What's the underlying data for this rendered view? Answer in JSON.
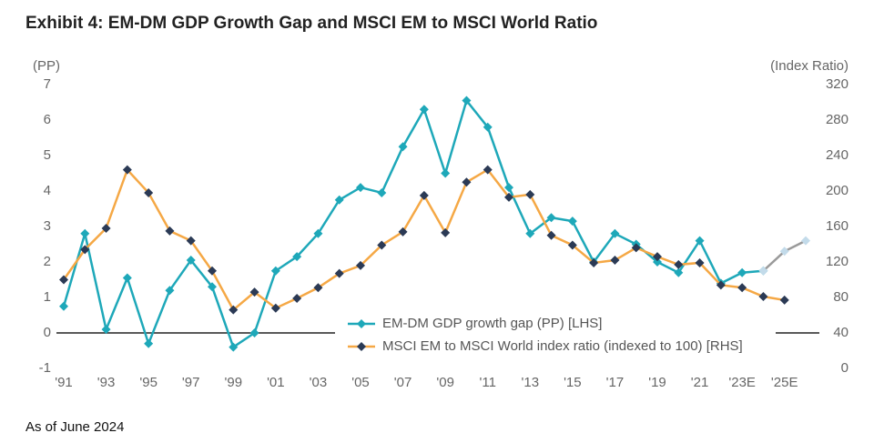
{
  "chart_data": {
    "type": "line",
    "title": "Exhibit 4: EM-DM GDP Growth Gap and MSCI EM to MSCI World Ratio",
    "y_label": "(PP)",
    "y2_label": "(Index Ratio)",
    "footnote": "As of June 2024",
    "categories": [
      "'91",
      null,
      "'93",
      null,
      "'95",
      null,
      "'97",
      null,
      "'99",
      null,
      "'01",
      null,
      "'03",
      null,
      "'05",
      null,
      "'07",
      null,
      "'09",
      null,
      "'11",
      null,
      "'13",
      null,
      "'15",
      null,
      "'17",
      null,
      "'19",
      null,
      "'21",
      null,
      "'23E",
      null,
      "'25E",
      null
    ],
    "ylim": [
      -1,
      7
    ],
    "yticks": [
      -1,
      0,
      1,
      2,
      3,
      4,
      5,
      6,
      7
    ],
    "y2lim": [
      0,
      320
    ],
    "y2ticks": [
      0,
      40,
      80,
      120,
      160,
      200,
      240,
      280,
      320
    ],
    "zero_line": true,
    "series": [
      {
        "name": "EM-DM GDP growth gap (PP) [LHS]",
        "color": "#1ea8b9",
        "marker_color": "#1ea8b9",
        "values": [
          0.75,
          2.8,
          0.1,
          1.55,
          -0.3,
          1.2,
          2.05,
          1.3,
          -0.4,
          0,
          1.75,
          2.15,
          2.8,
          3.75,
          4.1,
          3.95,
          5.25,
          6.3,
          4.5,
          6.55,
          5.8,
          4.1,
          2.8,
          3.25,
          3.15,
          2.0,
          2.8,
          2.5,
          2.0,
          1.7,
          2.6,
          1.4,
          1.7,
          1.75,
          null,
          null
        ]
      },
      {
        "name": "MSCI EM to MSCI World index ratio (indexed to 100) [RHS]",
        "color": "#f5a845",
        "marker_color": "#2b3a55",
        "axis": "y2",
        "values": [
          100,
          134,
          158,
          224,
          198,
          155,
          144,
          110,
          66,
          86,
          68,
          79,
          91,
          107,
          116,
          139,
          154,
          195,
          153,
          210,
          224,
          193,
          196,
          150,
          139,
          119,
          122,
          136,
          126,
          117,
          119,
          94,
          91,
          81,
          77,
          null
        ]
      },
      {
        "color": "#9a9a9a",
        "marker_color": "#c3dbea",
        "values": [
          null,
          null,
          null,
          null,
          null,
          null,
          null,
          null,
          null,
          null,
          null,
          null,
          null,
          null,
          null,
          null,
          null,
          null,
          null,
          null,
          null,
          null,
          null,
          null,
          null,
          null,
          null,
          null,
          null,
          null,
          null,
          null,
          null,
          1.75,
          2.3,
          2.6
        ]
      }
    ]
  }
}
